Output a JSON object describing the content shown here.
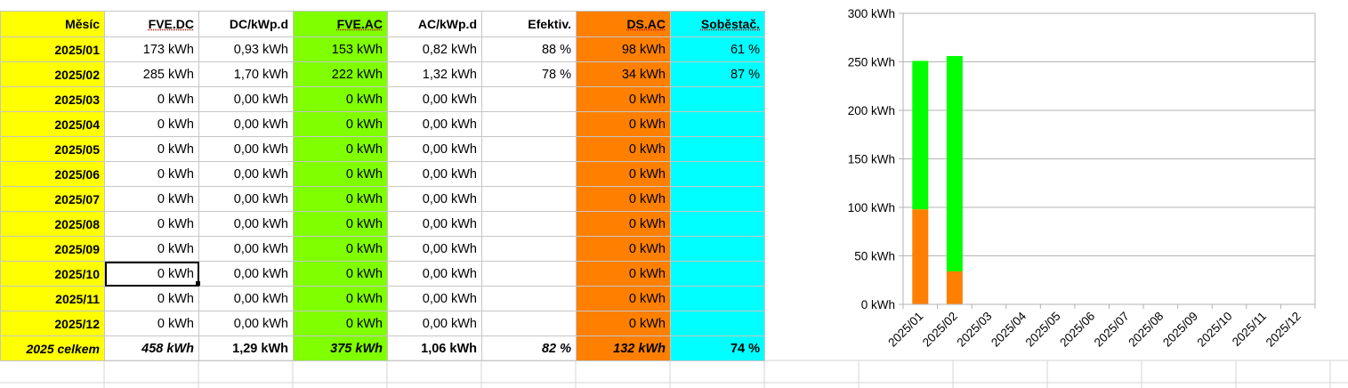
{
  "sheet": {
    "headers": [
      "Měsíc",
      "FVE.DC",
      "DC/kWp.d",
      "FVE.AC",
      "AC/kWp.d",
      "Efektiv.",
      "DS.AC",
      "Soběstač."
    ],
    "rows": [
      [
        "2025/01",
        "173 kWh",
        "0,93 kWh",
        "153 kWh",
        "0,82 kWh",
        "88 %",
        "98 kWh",
        "61 %"
      ],
      [
        "2025/02",
        "285 kWh",
        "1,70 kWh",
        "222 kWh",
        "1,32 kWh",
        "78 %",
        "34 kWh",
        "87 %"
      ],
      [
        "2025/03",
        "0 kWh",
        "0,00 kWh",
        "0 kWh",
        "0,00 kWh",
        "",
        "0 kWh",
        ""
      ],
      [
        "2025/04",
        "0 kWh",
        "0,00 kWh",
        "0 kWh",
        "0,00 kWh",
        "",
        "0 kWh",
        ""
      ],
      [
        "2025/05",
        "0 kWh",
        "0,00 kWh",
        "0 kWh",
        "0,00 kWh",
        "",
        "0 kWh",
        ""
      ],
      [
        "2025/06",
        "0 kWh",
        "0,00 kWh",
        "0 kWh",
        "0,00 kWh",
        "",
        "0 kWh",
        ""
      ],
      [
        "2025/07",
        "0 kWh",
        "0,00 kWh",
        "0 kWh",
        "0,00 kWh",
        "",
        "0 kWh",
        ""
      ],
      [
        "2025/08",
        "0 kWh",
        "0,00 kWh",
        "0 kWh",
        "0,00 kWh",
        "",
        "0 kWh",
        ""
      ],
      [
        "2025/09",
        "0 kWh",
        "0,00 kWh",
        "0 kWh",
        "0,00 kWh",
        "",
        "0 kWh",
        ""
      ],
      [
        "2025/10",
        "0 kWh",
        "0,00 kWh",
        "0 kWh",
        "0,00 kWh",
        "",
        "0 kWh",
        ""
      ],
      [
        "2025/11",
        "0 kWh",
        "0,00 kWh",
        "0 kWh",
        "0,00 kWh",
        "",
        "0 kWh",
        ""
      ],
      [
        "2025/12",
        "0 kWh",
        "0,00 kWh",
        "0 kWh",
        "0,00 kWh",
        "",
        "0 kWh",
        ""
      ]
    ],
    "total": [
      "2025 celkem",
      "458 kWh",
      "1,29 kWh",
      "375 kWh",
      "1,06 kWh",
      "82 %",
      "132 kWh",
      "74 %"
    ],
    "selected_cell": {
      "row": 9,
      "col": 1
    },
    "colors": {
      "month": "#ffff00",
      "ac": "#80ff00",
      "ds": "#ff8000",
      "self": "#00ffff"
    }
  },
  "chart_data": {
    "type": "bar",
    "stacked": true,
    "categories": [
      "2025/01",
      "2025/02",
      "2025/03",
      "2025/04",
      "2025/05",
      "2025/06",
      "2025/07",
      "2025/08",
      "2025/09",
      "2025/10",
      "2025/11",
      "2025/12"
    ],
    "series": [
      {
        "color": "#ff8000",
        "values": [
          98,
          34,
          0,
          0,
          0,
          0,
          0,
          0,
          0,
          0,
          0,
          0
        ]
      },
      {
        "color": "#00ff00",
        "values": [
          153,
          222,
          0,
          0,
          0,
          0,
          0,
          0,
          0,
          0,
          0,
          0
        ]
      }
    ],
    "ylim": [
      0,
      300
    ],
    "yticks": [
      "0 kWh",
      "50 kWh",
      "100 kWh",
      "150 kWh",
      "200 kWh",
      "250 kWh",
      "300 kWh"
    ],
    "grid": true,
    "title": "",
    "xlabel": "",
    "ylabel": ""
  }
}
